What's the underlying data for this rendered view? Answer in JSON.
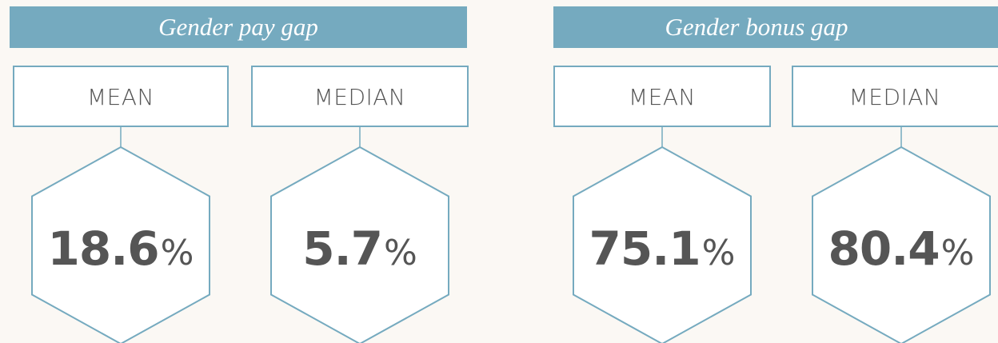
{
  "panels": [
    {
      "title": "Gender pay gap",
      "metrics": [
        {
          "label": "MEAN",
          "value": "18.6",
          "unit": "%"
        },
        {
          "label": "MEDIAN",
          "value": "5.7",
          "unit": "%"
        }
      ]
    },
    {
      "title": "Gender bonus gap",
      "metrics": [
        {
          "label": "MEAN",
          "value": "75.1",
          "unit": "%"
        },
        {
          "label": "MEDIAN",
          "value": "80.4",
          "unit": "%"
        }
      ]
    }
  ]
}
